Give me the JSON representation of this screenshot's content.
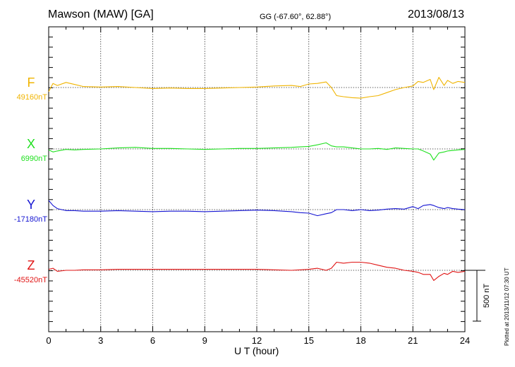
{
  "header": {
    "station": "Mawson (MAW)  [GA]",
    "coords": "GG (-67.60°,  62.88°)",
    "date": "2013/08/13"
  },
  "footer": {
    "plotted": "Plotted at 2013/11/12 07:30 UT"
  },
  "chart_data": {
    "type": "line",
    "xlabel": "U T (hour)",
    "xlim": [
      0,
      24
    ],
    "x_ticks": [
      "0",
      "3",
      "6",
      "9",
      "12",
      "15",
      "18",
      "21",
      "24"
    ],
    "scale_bar_label": "500 nT",
    "scale_bar_nT": 500,
    "units": "nT",
    "x": [
      0,
      0.25,
      0.5,
      1,
      1.5,
      2,
      3,
      4,
      5,
      6,
      7,
      8,
      9,
      10,
      11,
      12,
      13,
      14,
      14.5,
      15,
      15.5,
      16,
      16.3,
      16.6,
      17,
      17.5,
      18,
      18.5,
      19,
      19.5,
      20,
      20.5,
      21,
      21.3,
      21.6,
      22,
      22.2,
      22.5,
      22.8,
      23,
      23.3,
      23.6,
      24
    ],
    "series": [
      {
        "name": "F",
        "baseline_label": "49160nT",
        "baseline": 49160,
        "color": "#f0b400",
        "values": [
          49120,
          49200,
          49180,
          49210,
          49190,
          49170,
          49165,
          49170,
          49160,
          49150,
          49155,
          49150,
          49150,
          49155,
          49160,
          49165,
          49175,
          49180,
          49170,
          49195,
          49200,
          49215,
          49160,
          49080,
          49070,
          49060,
          49055,
          49070,
          49080,
          49110,
          49140,
          49160,
          49175,
          49220,
          49210,
          49240,
          49140,
          49260,
          49180,
          49230,
          49200,
          49220,
          49210
        ]
      },
      {
        "name": "X",
        "baseline_label": "6990nT",
        "baseline": 6990,
        "color": "#20e020",
        "values": [
          6980,
          6960,
          6970,
          6985,
          6980,
          6985,
          6990,
          7000,
          7005,
          6995,
          6995,
          6990,
          6985,
          6990,
          6995,
          6995,
          7000,
          7005,
          7010,
          7015,
          7030,
          7050,
          7020,
          7010,
          7010,
          7000,
          6990,
          6990,
          6995,
          6985,
          7000,
          6995,
          6990,
          6990,
          6970,
          6940,
          6880,
          6950,
          6960,
          6970,
          6975,
          6980,
          6985
        ]
      },
      {
        "name": "Y",
        "baseline_label": "-17180nT",
        "baseline": -17180,
        "color": "#1414d2",
        "values": [
          -17090,
          -17140,
          -17170,
          -17190,
          -17190,
          -17195,
          -17195,
          -17190,
          -17195,
          -17200,
          -17195,
          -17195,
          -17200,
          -17195,
          -17190,
          -17185,
          -17190,
          -17200,
          -17210,
          -17215,
          -17240,
          -17220,
          -17210,
          -17180,
          -17180,
          -17190,
          -17180,
          -17190,
          -17185,
          -17175,
          -17170,
          -17175,
          -17150,
          -17170,
          -17140,
          -17130,
          -17140,
          -17160,
          -17170,
          -17160,
          -17170,
          -17175,
          -17180
        ]
      },
      {
        "name": "Z",
        "baseline_label": "-45520nT",
        "baseline": -45520,
        "color": "#e01414",
        "values": [
          -45510,
          -45500,
          -45530,
          -45520,
          -45520,
          -45515,
          -45515,
          -45510,
          -45510,
          -45510,
          -45510,
          -45510,
          -45510,
          -45510,
          -45510,
          -45510,
          -45515,
          -45520,
          -45515,
          -45510,
          -45500,
          -45520,
          -45500,
          -45440,
          -45450,
          -45440,
          -45440,
          -45450,
          -45470,
          -45490,
          -45500,
          -45520,
          -45530,
          -45540,
          -45560,
          -45560,
          -45620,
          -45580,
          -45550,
          -45560,
          -45530,
          -45540,
          -45530
        ]
      }
    ]
  }
}
